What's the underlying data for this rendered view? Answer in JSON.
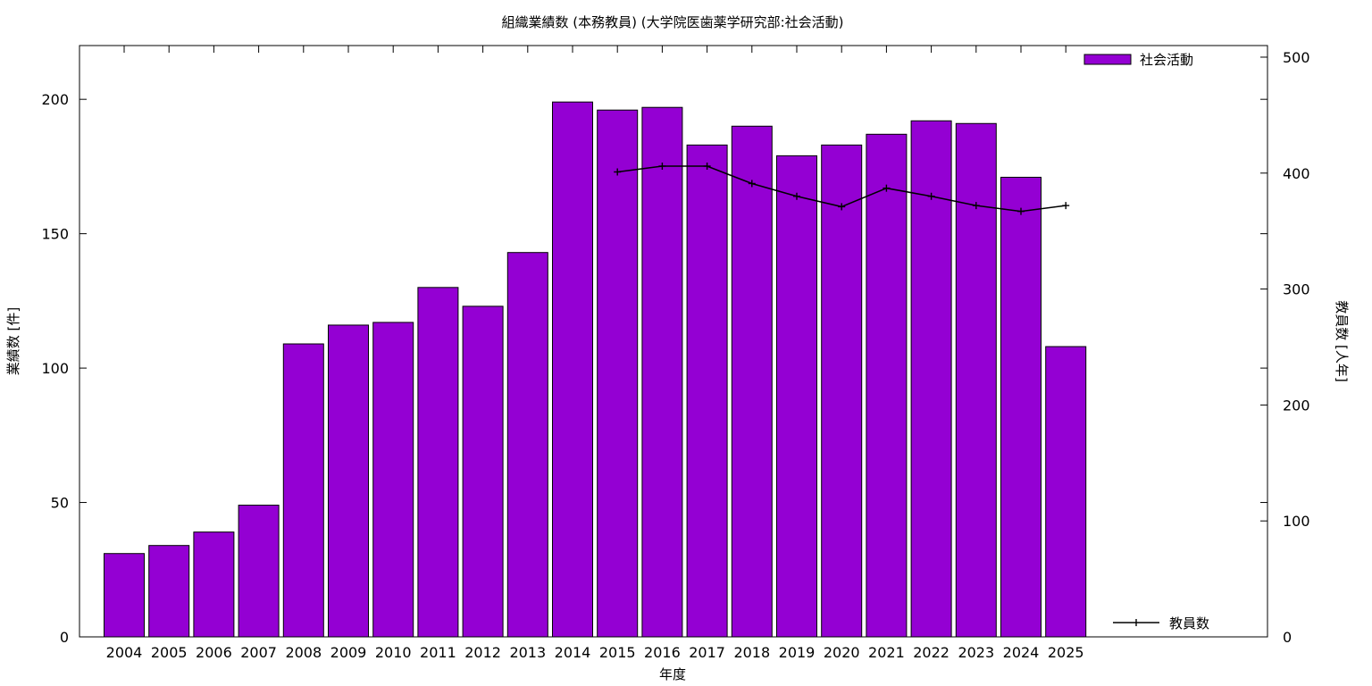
{
  "chart_data": {
    "type": "bar",
    "title": "組織業績数 (本務教員) (大学院医歯薬学研究部:社会活動)",
    "xlabel": "年度",
    "ylabel": "業績数 [件]",
    "y2label": "教員数 [人年]",
    "ylim": [
      0,
      220
    ],
    "y2lim": [
      0,
      510
    ],
    "yticks": [
      0,
      50,
      100,
      150,
      200
    ],
    "y2ticks": [
      0,
      100,
      200,
      300,
      400,
      500
    ],
    "legend_position": "top-right",
    "categories": [
      "2004",
      "2005",
      "2006",
      "2007",
      "2008",
      "2009",
      "2010",
      "2011",
      "2012",
      "2013",
      "2014",
      "2015",
      "2016",
      "2017",
      "2018",
      "2019",
      "2020",
      "2021",
      "2022",
      "2023",
      "2024",
      "2025"
    ],
    "series": [
      {
        "name": "社会活動",
        "type": "bar",
        "axis": "left",
        "color": "#9400D3",
        "values": [
          31,
          34,
          39,
          49,
          109,
          116,
          117,
          130,
          123,
          143,
          199,
          196,
          197,
          183,
          190,
          179,
          183,
          187,
          192,
          191,
          171,
          108
        ]
      },
      {
        "name": "教員数",
        "type": "line",
        "axis": "right",
        "color": "#000000",
        "values": [
          null,
          null,
          null,
          null,
          null,
          null,
          null,
          null,
          null,
          null,
          null,
          401,
          406,
          406,
          391,
          380,
          371,
          387,
          380,
          372,
          367,
          372
        ]
      }
    ]
  }
}
